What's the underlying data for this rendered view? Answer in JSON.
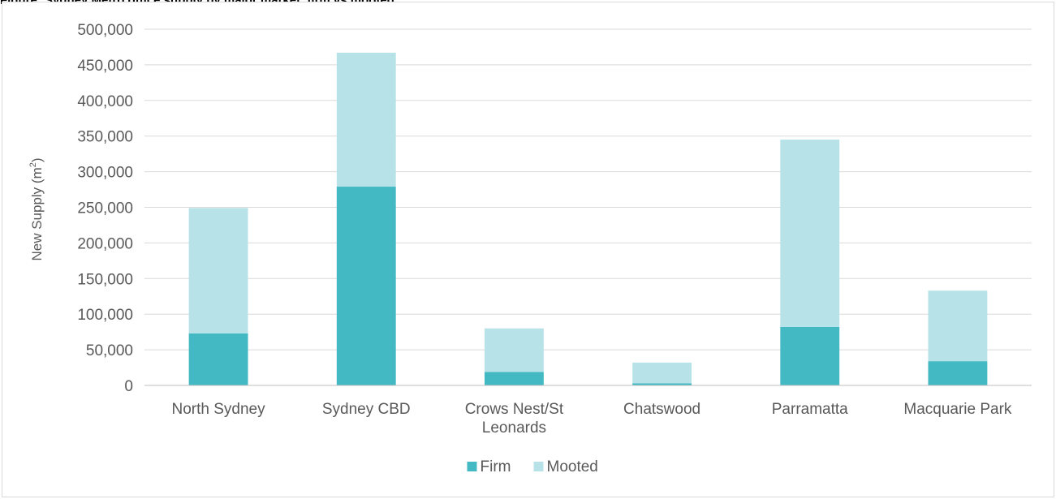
{
  "caption": "Figure: Sydney Metro office supply by major market, firm vs mooted",
  "chart_data": {
    "type": "bar",
    "stacked": true,
    "categories": [
      [
        "North Sydney"
      ],
      [
        "Sydney CBD"
      ],
      [
        "Crows Nest/St",
        "Leonards"
      ],
      [
        "Chatswood"
      ],
      [
        "Parramatta"
      ],
      [
        "Macquarie Park"
      ]
    ],
    "series": [
      {
        "name": "Firm",
        "color": "#43b9c4",
        "values": [
          73000,
          279000,
          19000,
          3000,
          82000,
          34000
        ]
      },
      {
        "name": "Mooted",
        "color": "#b7e3e8",
        "values": [
          176000,
          188000,
          61000,
          29000,
          263000,
          99000
        ]
      }
    ],
    "ylabel_main": "New Supply (m",
    "ylabel_sup": "2",
    "ylabel_end": ")",
    "xlabel": "",
    "ylim": [
      0,
      500000
    ],
    "yticks": [
      "0",
      "50,000",
      "100,000",
      "150,000",
      "200,000",
      "250,000",
      "300,000",
      "350,000",
      "400,000",
      "450,000",
      "500,000"
    ],
    "grid": true,
    "legend_position": "bottom"
  }
}
